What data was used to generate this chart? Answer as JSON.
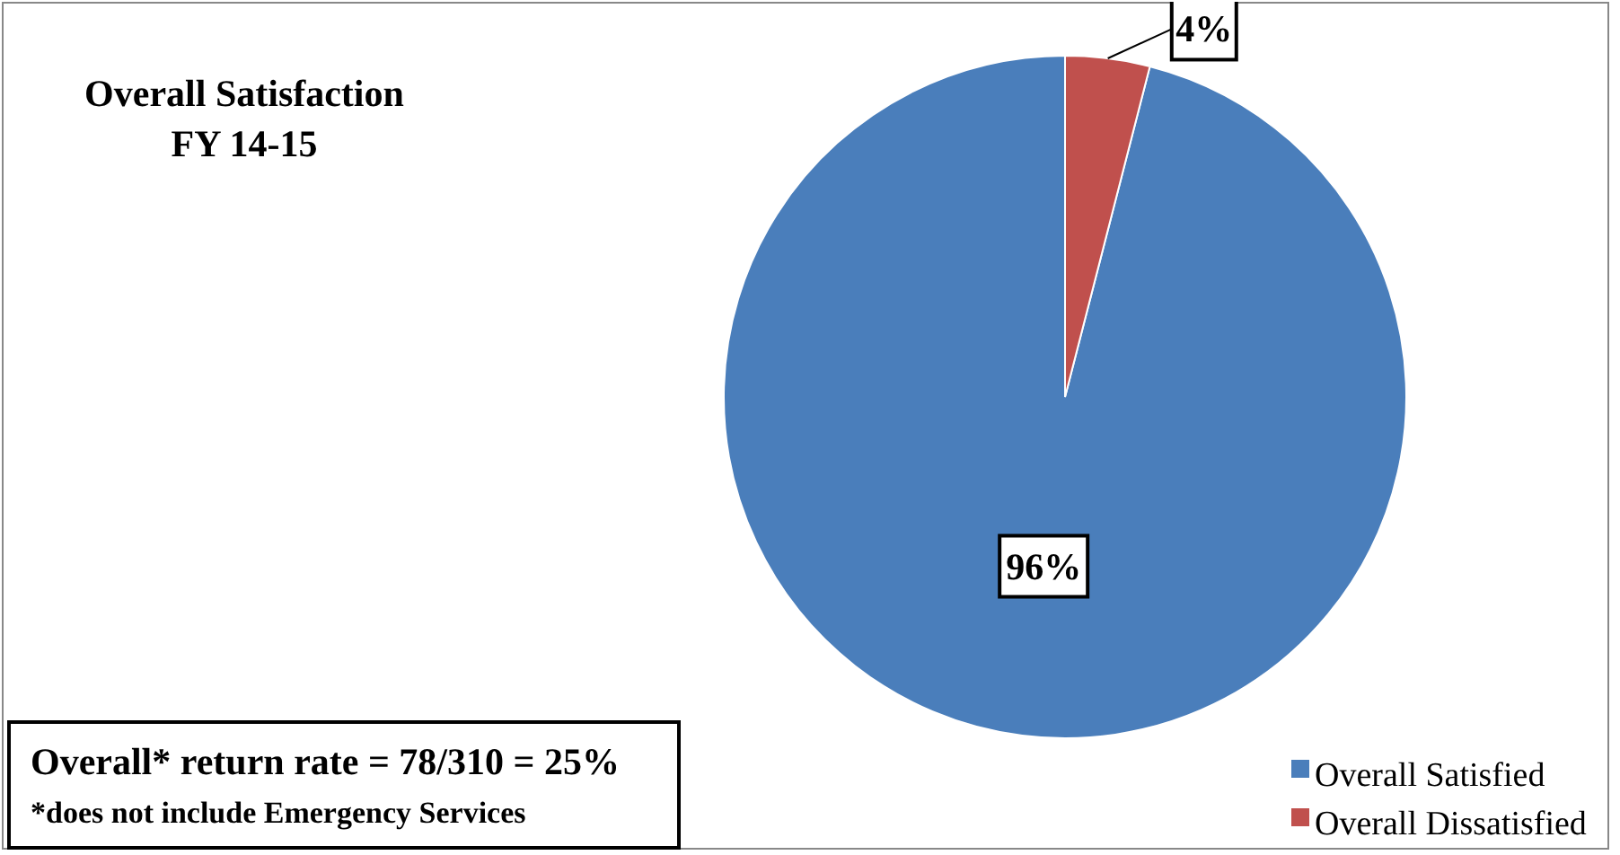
{
  "chart_data": {
    "type": "pie",
    "title": "Overall Satisfaction",
    "subtitle": "FY 14-15",
    "categories": [
      "Overall Satisfied",
      "Overall Dissatisfied"
    ],
    "values": [
      96,
      4
    ],
    "colors": [
      "#4a7ebb",
      "#c0504d"
    ],
    "value_labels": [
      "96%",
      "4%"
    ],
    "legend": "bottom right",
    "annotations": [
      "Overall* return rate = 78/310 = 25%",
      "*does not include Emergency Services"
    ]
  }
}
